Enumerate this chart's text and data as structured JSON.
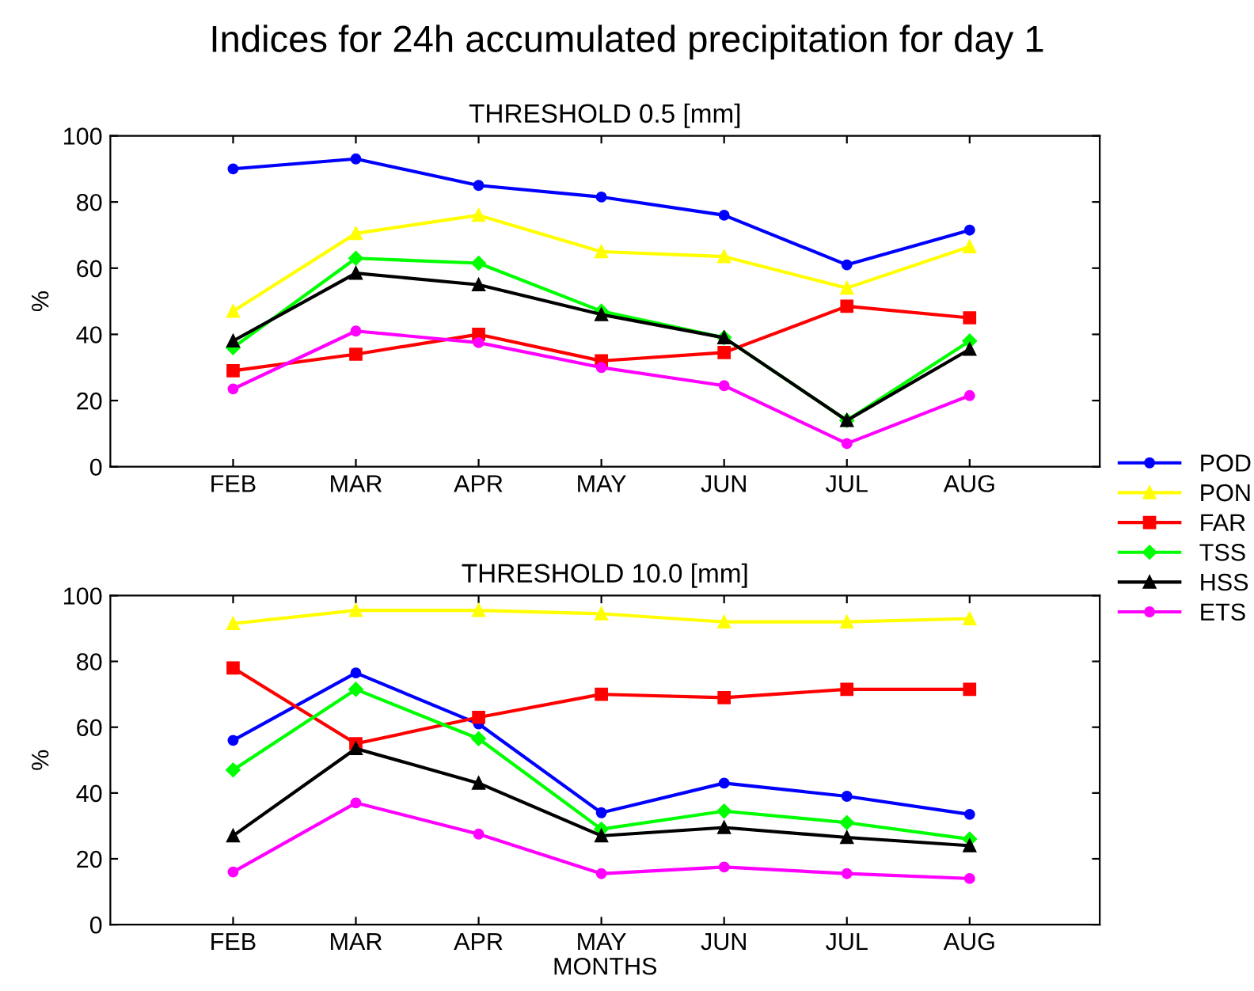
{
  "chart_data": [
    {
      "type": "line",
      "title": "Indices for 24h accumulated precipitation for day 1",
      "subtitle": "THRESHOLD 0.5 [mm]",
      "ylabel": "%",
      "categories": [
        "FEB",
        "MAR",
        "APR",
        "MAY",
        "JUN",
        "JUL",
        "AUG"
      ],
      "ylim": [
        0,
        100
      ],
      "yticks": [
        0,
        20,
        40,
        60,
        80,
        100
      ],
      "grid": false,
      "legend": "right",
      "tick_labels": "xy",
      "series": [
        {
          "name": "POD",
          "color": "#0000ff",
          "marker": "circle",
          "values": [
            90,
            93,
            85,
            81.5,
            76,
            61,
            71.5
          ]
        },
        {
          "name": "PON",
          "color": "#ffff00",
          "marker": "triangle",
          "values": [
            47,
            70.5,
            76,
            65,
            63.5,
            54,
            66.5
          ]
        },
        {
          "name": "FAR",
          "color": "#ff0000",
          "marker": "square",
          "values": [
            29,
            34,
            40,
            32,
            34.5,
            48.5,
            45
          ]
        },
        {
          "name": "TSS",
          "color": "#00ff00",
          "marker": "diamond",
          "values": [
            36,
            63,
            61.5,
            47,
            39,
            14,
            38
          ]
        },
        {
          "name": "HSS",
          "color": "#000000",
          "marker": "triangle",
          "values": [
            38,
            58.5,
            55,
            46,
            39,
            14,
            35.5
          ]
        },
        {
          "name": "ETS",
          "color": "#ff00ff",
          "marker": "circle",
          "values": [
            23.5,
            41,
            37.5,
            30,
            24.5,
            7,
            21.5
          ]
        }
      ]
    },
    {
      "type": "line",
      "subtitle": "THRESHOLD 10.0 [mm]",
      "ylabel": "%",
      "xlabel": "MONTHS",
      "categories": [
        "FEB",
        "MAR",
        "APR",
        "MAY",
        "JUN",
        "JUL",
        "AUG"
      ],
      "ylim": [
        0,
        100
      ],
      "yticks": [
        0,
        20,
        40,
        60,
        80,
        100
      ],
      "grid": false,
      "series": [
        {
          "color": "#0000ff",
          "marker": "circle",
          "values": [
            56,
            76.5,
            61,
            34,
            43,
            39,
            33.5
          ]
        },
        {
          "color": "#ffff00",
          "marker": "triangle",
          "values": [
            91.5,
            95.5,
            95.5,
            94.5,
            92,
            92,
            93
          ]
        },
        {
          "color": "#ff0000",
          "marker": "square",
          "values": [
            78,
            55,
            63,
            70,
            69,
            71.5,
            71.5
          ]
        },
        {
          "color": "#00ff00",
          "marker": "diamond",
          "values": [
            47,
            71.5,
            56.5,
            29,
            34.5,
            31,
            26
          ]
        },
        {
          "color": "#000000",
          "marker": "triangle",
          "values": [
            27,
            53.5,
            43,
            27,
            29.5,
            26.5,
            24
          ]
        },
        {
          "color": "#ff00ff",
          "marker": "circle",
          "values": [
            16,
            37,
            27.5,
            15.5,
            17.5,
            15.5,
            14
          ]
        }
      ]
    }
  ]
}
